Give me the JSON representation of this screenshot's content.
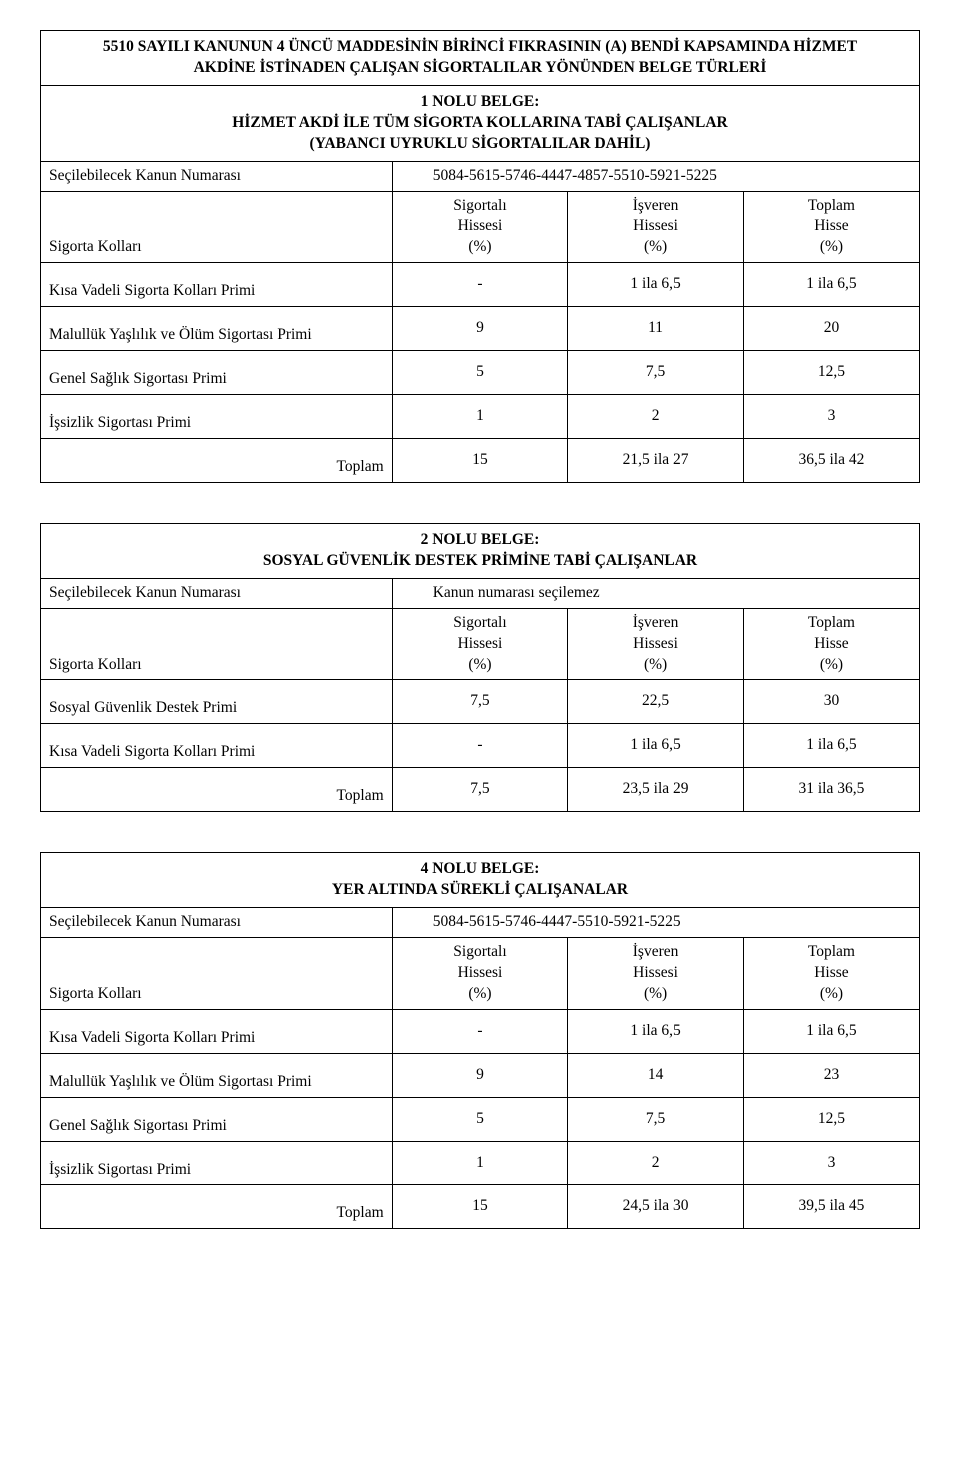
{
  "document": {
    "main_title": "5510 SAYILI KANUNUN 4 ÜNCÜ MADDESİNİN BİRİNCİ FIKRASININ (A) BENDİ KAPSAMINDA HİZMET AKDİNE İSTİNADEN ÇALIŞAN SİGORTALILAR YÖNÜNDEN BELGE TÜRLERİ",
    "blocks": [
      {
        "subtitle_lines": [
          "1 NOLU BELGE:",
          "HİZMET AKDİ İLE TÜM SİGORTA KOLLARINA TABİ ÇALIŞANLAR",
          "(YABANCI UYRUKLU SİGORTALILAR DAHİL)"
        ],
        "law_row": {
          "label": "Seçilebilecek Kanun Numarası",
          "value": "5084-5615-5746-4447-4857-5510-5921-5225"
        },
        "head_row": {
          "label": "Sigorta Kolları",
          "col1": [
            "Sigortalı",
            "Hissesi",
            "(%)"
          ],
          "col2": [
            "İşveren",
            "Hissesi",
            "(%)"
          ],
          "col3": [
            "Toplam",
            "Hisse",
            "(%)"
          ]
        },
        "rows": [
          {
            "label": "Kısa Vadeli Sigorta Kolları Primi",
            "c1": "-",
            "c2": "1 ila 6,5",
            "c3": "1 ila 6,5"
          },
          {
            "label": "Malullük Yaşlılık ve Ölüm Sigortası Primi",
            "c1": "9",
            "c2": "11",
            "c3": "20"
          },
          {
            "label": "Genel Sağlık Sigortası Primi",
            "c1": "5",
            "c2": "7,5",
            "c3": "12,5"
          },
          {
            "label": "İşsizlik Sigortası Primi",
            "c1": "1",
            "c2": "2",
            "c3": "3"
          }
        ],
        "total": {
          "label": "Toplam",
          "c1": "15",
          "c2": "21,5 ila 27",
          "c3": "36,5 ila 42"
        }
      },
      {
        "subtitle_lines": [
          "2 NOLU BELGE:",
          "SOSYAL GÜVENLİK DESTEK PRİMİNE TABİ ÇALIŞANLAR"
        ],
        "law_row": {
          "label": "Seçilebilecek Kanun Numarası",
          "value": "Kanun numarası seçilemez"
        },
        "head_row": {
          "label": "Sigorta Kolları",
          "col1": [
            "Sigortalı",
            "Hissesi",
            "(%)"
          ],
          "col2": [
            "İşveren",
            "Hissesi",
            "(%)"
          ],
          "col3": [
            "Toplam",
            "Hisse",
            "(%)"
          ]
        },
        "rows": [
          {
            "label": "Sosyal Güvenlik Destek Primi",
            "c1": "7,5",
            "c2": "22,5",
            "c3": "30"
          },
          {
            "label": "Kısa Vadeli Sigorta Kolları Primi",
            "c1": "-",
            "c2": "1 ila 6,5",
            "c3": "1 ila 6,5"
          }
        ],
        "total": {
          "label": "Toplam",
          "c1": "7,5",
          "c2": "23,5 ila 29",
          "c3": "31 ila 36,5"
        }
      },
      {
        "subtitle_lines": [
          "4 NOLU BELGE:",
          "YER ALTINDA SÜREKLİ ÇALIŞANALAR"
        ],
        "law_row": {
          "label": "Seçilebilecek Kanun Numarası",
          "value": "5084-5615-5746-4447-5510-5921-5225"
        },
        "head_row": {
          "label": "Sigorta Kolları",
          "col1": [
            "Sigortalı",
            "Hissesi",
            "(%)"
          ],
          "col2": [
            "İşveren",
            "Hissesi",
            "(%)"
          ],
          "col3": [
            "Toplam",
            "Hisse",
            "(%)"
          ]
        },
        "rows": [
          {
            "label": "Kısa Vadeli Sigorta Kolları Primi",
            "c1": "-",
            "c2": "1 ila 6,5",
            "c3": "1 ila 6,5"
          },
          {
            "label": "Malullük Yaşlılık ve Ölüm Sigortası Primi",
            "c1": "9",
            "c2": "14",
            "c3": "23"
          },
          {
            "label": "Genel Sağlık Sigortası Primi",
            "c1": "5",
            "c2": "7,5",
            "c3": "12,5"
          },
          {
            "label": "İşsizlik Sigortası Primi",
            "c1": "1",
            "c2": "2",
            "c3": "3"
          }
        ],
        "total": {
          "label": "Toplam",
          "c1": "15",
          "c2": "24,5 ila 30",
          "c3": "39,5 ila 45"
        }
      }
    ]
  },
  "style": {
    "font_family": "Times New Roman",
    "base_fontsize": 15.5,
    "border_color": "#000000",
    "background_color": "#ffffff",
    "text_color": "#000000",
    "col_widths_pct": [
      40,
      20,
      20,
      20
    ]
  }
}
